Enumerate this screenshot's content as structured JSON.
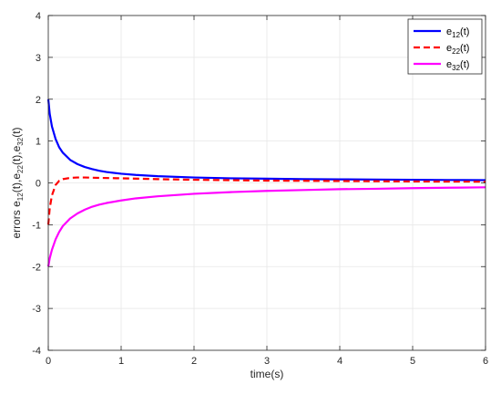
{
  "chart_data": {
    "type": "line",
    "xlabel": "time(s)",
    "ylabel": {
      "prefix": "errors e",
      "parts": [
        {
          "base": "e",
          "sub": "12",
          "after": "(t),"
        },
        {
          "base": "e",
          "sub": "22",
          "after": "(t),"
        },
        {
          "base": "e",
          "sub": "32",
          "after": "(t)"
        }
      ]
    },
    "xlim": [
      0,
      6
    ],
    "ylim": [
      -4,
      4
    ],
    "xticks": [
      0,
      1,
      2,
      3,
      4,
      5,
      6
    ],
    "yticks": [
      -4,
      -3,
      -2,
      -1,
      0,
      1,
      2,
      3,
      4
    ],
    "grid": true,
    "legend_position": "top-right",
    "series": [
      {
        "name": "e12(t)",
        "legend": {
          "base": "e",
          "sub": "12",
          "after": "(t)"
        },
        "color": "#0000FF",
        "dash": "solid",
        "x": [
          0,
          0.02,
          0.05,
          0.1,
          0.15,
          0.2,
          0.3,
          0.4,
          0.5,
          0.6,
          0.7,
          0.8,
          1.0,
          1.2,
          1.5,
          2.0,
          2.5,
          3.0,
          3.5,
          4.0,
          4.5,
          5.0,
          5.5,
          6.0
        ],
        "y": [
          2.0,
          1.65,
          1.35,
          1.05,
          0.85,
          0.72,
          0.55,
          0.45,
          0.38,
          0.33,
          0.29,
          0.26,
          0.22,
          0.19,
          0.16,
          0.13,
          0.11,
          0.1,
          0.09,
          0.085,
          0.08,
          0.075,
          0.07,
          0.065
        ]
      },
      {
        "name": "e22(t)",
        "legend": {
          "base": "e",
          "sub": "22",
          "after": "(t)"
        },
        "color": "#FF0000",
        "dash": "dashed",
        "x": [
          0,
          0.02,
          0.05,
          0.1,
          0.15,
          0.2,
          0.3,
          0.4,
          0.5,
          0.7,
          1.0,
          1.5,
          2.0,
          2.5,
          3.0,
          3.5,
          4.0,
          4.5,
          5.0,
          5.5,
          6.0
        ],
        "y": [
          -1.0,
          -0.6,
          -0.3,
          -0.05,
          0.05,
          0.09,
          0.12,
          0.13,
          0.13,
          0.12,
          0.11,
          0.09,
          0.075,
          0.065,
          0.055,
          0.05,
          0.045,
          0.04,
          0.035,
          0.032,
          0.03
        ]
      },
      {
        "name": "e32(t)",
        "legend": {
          "base": "e",
          "sub": "32",
          "after": "(t)"
        },
        "color": "#FF00FF",
        "dash": "solid",
        "x": [
          0,
          0.02,
          0.05,
          0.1,
          0.15,
          0.2,
          0.3,
          0.4,
          0.5,
          0.6,
          0.7,
          0.8,
          1.0,
          1.2,
          1.5,
          2.0,
          2.5,
          3.0,
          3.5,
          4.0,
          4.5,
          5.0,
          5.5,
          6.0
        ],
        "y": [
          -2.0,
          -1.8,
          -1.6,
          -1.35,
          -1.17,
          -1.03,
          -0.85,
          -0.73,
          -0.64,
          -0.57,
          -0.52,
          -0.48,
          -0.42,
          -0.37,
          -0.32,
          -0.26,
          -0.22,
          -0.19,
          -0.17,
          -0.15,
          -0.14,
          -0.125,
          -0.115,
          -0.105
        ]
      }
    ]
  }
}
